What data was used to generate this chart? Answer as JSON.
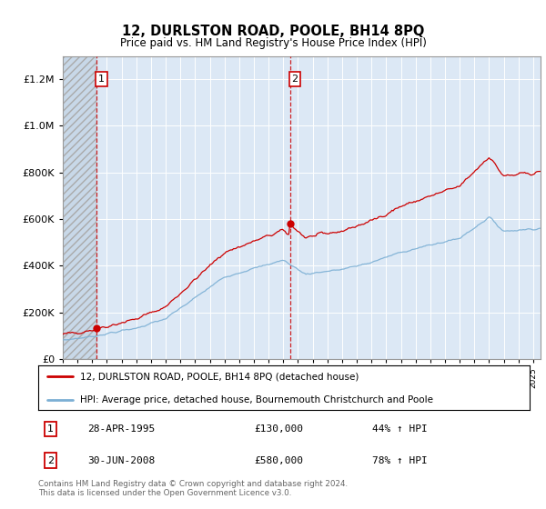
{
  "title": "12, DURLSTON ROAD, POOLE, BH14 8PQ",
  "subtitle": "Price paid vs. HM Land Registry's House Price Index (HPI)",
  "legend_line1": "12, DURLSTON ROAD, POOLE, BH14 8PQ (detached house)",
  "legend_line2": "HPI: Average price, detached house, Bournemouth Christchurch and Poole",
  "footer": "Contains HM Land Registry data © Crown copyright and database right 2024.\nThis data is licensed under the Open Government Licence v3.0.",
  "sale1_date_num": 1995.32,
  "sale1_price": 130000,
  "sale1_label": "28-APR-1995",
  "sale1_price_str": "£130,000",
  "sale1_pct": "44% ↑ HPI",
  "sale2_date_num": 2008.49,
  "sale2_price": 580000,
  "sale2_label": "30-JUN-2008",
  "sale2_price_str": "£580,000",
  "sale2_pct": "78% ↑ HPI",
  "red_color": "#cc0000",
  "blue_color": "#7bafd4",
  "grid_color": "#cccccc",
  "xmin": 1993,
  "xmax": 2025.5,
  "ymin": 0,
  "ymax": 1300000
}
